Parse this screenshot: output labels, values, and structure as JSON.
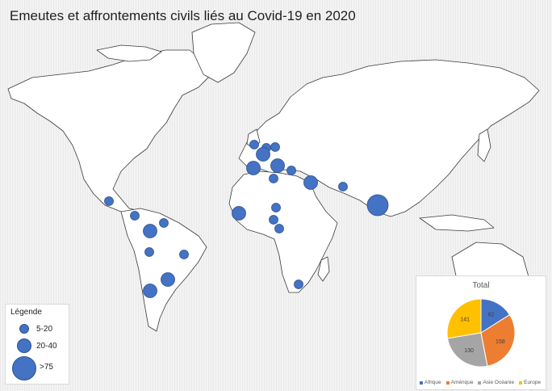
{
  "title": "Emeutes et affrontements civils liés au Covid-19 en 2020",
  "colors": {
    "marker": "#4472c4",
    "marker_stroke": "#2f528f",
    "land": "#ffffff",
    "land_stroke": "#3a3a3a"
  },
  "legend": {
    "title": "Légende",
    "items": [
      {
        "label": "5-20"
      },
      {
        "label": "20-40"
      },
      {
        "label": ">75"
      }
    ]
  },
  "markers": [
    {
      "location": "Mexique",
      "size_class": "5-20"
    },
    {
      "location": "Guatemala",
      "size_class": "5-20"
    },
    {
      "location": "Venezuela",
      "size_class": "5-20"
    },
    {
      "location": "Colombie",
      "size_class": "20-40"
    },
    {
      "location": "Pérou",
      "size_class": "5-20"
    },
    {
      "location": "Brésil",
      "size_class": "5-20"
    },
    {
      "location": "Paraguay",
      "size_class": "20-40"
    },
    {
      "location": "Chili",
      "size_class": "20-40"
    },
    {
      "location": "Royaume-Uni",
      "size_class": "5-20"
    },
    {
      "location": "Pays-Bas",
      "size_class": "5-20"
    },
    {
      "location": "Pologne",
      "size_class": "5-20"
    },
    {
      "location": "Allemagne",
      "size_class": "20-40"
    },
    {
      "location": "France",
      "size_class": "20-40"
    },
    {
      "location": "Autriche",
      "size_class": "20-40"
    },
    {
      "location": "Serbie",
      "size_class": "5-20"
    },
    {
      "location": "Italie",
      "size_class": "5-20"
    },
    {
      "location": "Irak",
      "size_class": "20-40"
    },
    {
      "location": "Pakistan",
      "size_class": "5-20"
    },
    {
      "location": "Inde",
      "size_class": ">75"
    },
    {
      "location": "Sénégal",
      "size_class": "20-40"
    },
    {
      "location": "Nigeria",
      "size_class": "5-20"
    },
    {
      "location": "Tchad",
      "size_class": "5-20"
    },
    {
      "location": "Cameroun",
      "size_class": "5-20"
    },
    {
      "location": "Afrique du Sud",
      "size_class": "5-20"
    }
  ],
  "chart_data": {
    "type": "pie",
    "title": "Total",
    "categories": [
      "Afrique",
      "Amérique",
      "Asie Océanie",
      "Europe"
    ],
    "values": [
      82,
      158,
      130,
      141
    ],
    "colors": [
      "#4472c4",
      "#ed7d31",
      "#a5a5a5",
      "#ffc000"
    ]
  }
}
